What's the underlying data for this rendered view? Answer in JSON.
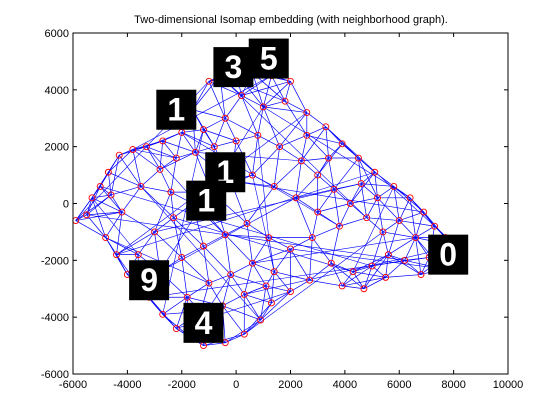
{
  "chart_data": {
    "type": "scatter",
    "title": "Two-dimensional Isomap embedding (with neighborhood graph).",
    "xlabel": "",
    "ylabel": "",
    "xlim": [
      -6000,
      10000
    ],
    "ylim": [
      -6000,
      6000
    ],
    "x_ticks": [
      "-6000",
      "-4000",
      "-2000",
      "0",
      "2000",
      "4000",
      "6000",
      "8000",
      "10000"
    ],
    "y_ticks": [
      "-6000",
      "-4000",
      "-2000",
      "0",
      "2000",
      "4000",
      "6000"
    ],
    "grid": false,
    "legend": "none",
    "point_color": "#ff0000",
    "edge_color": "#0000ff",
    "nodes": [
      [
        -5900,
        -600
      ],
      [
        -5500,
        -400
      ],
      [
        -5300,
        200
      ],
      [
        -5000,
        600
      ],
      [
        -4700,
        1100
      ],
      [
        -4300,
        1700
      ],
      [
        -3800,
        1900
      ],
      [
        -3300,
        2000
      ],
      [
        -2700,
        2200
      ],
      [
        -2000,
        2500
      ],
      [
        -1600,
        3300
      ],
      [
        -1000,
        4300
      ],
      [
        -600,
        4500
      ],
      [
        0,
        4600
      ],
      [
        600,
        4600
      ],
      [
        1300,
        4500
      ],
      [
        2000,
        4300
      ],
      [
        2600,
        3200
      ],
      [
        3300,
        2700
      ],
      [
        3900,
        2100
      ],
      [
        4500,
        1600
      ],
      [
        5100,
        1100
      ],
      [
        5800,
        600
      ],
      [
        6400,
        200
      ],
      [
        6900,
        -300
      ],
      [
        7300,
        -800
      ],
      [
        7700,
        -1200
      ],
      [
        8100,
        -1500
      ],
      [
        7600,
        -2300
      ],
      [
        6800,
        -2500
      ],
      [
        6200,
        -2000
      ],
      [
        5600,
        -1800
      ],
      [
        5000,
        -2200
      ],
      [
        4300,
        -2400
      ],
      [
        3500,
        -2100
      ],
      [
        2700,
        -2700
      ],
      [
        2000,
        -3100
      ],
      [
        1300,
        -3500
      ],
      [
        900,
        -4100
      ],
      [
        300,
        -4600
      ],
      [
        -400,
        -4900
      ],
      [
        -1200,
        -5000
      ],
      [
        -1700,
        -4700
      ],
      [
        -2200,
        -4400
      ],
      [
        -2700,
        -3900
      ],
      [
        -3200,
        -3300
      ],
      [
        -3600,
        -2900
      ],
      [
        -4000,
        -2500
      ],
      [
        -4400,
        -1800
      ],
      [
        -4800,
        -1200
      ],
      [
        -4200,
        -300
      ],
      [
        -3500,
        600
      ],
      [
        -2800,
        1200
      ],
      [
        -2200,
        1600
      ],
      [
        -1500,
        1800
      ],
      [
        -800,
        2000
      ],
      [
        0,
        2200
      ],
      [
        800,
        2400
      ],
      [
        1600,
        2000
      ],
      [
        2400,
        1500
      ],
      [
        3000,
        1000
      ],
      [
        3600,
        500
      ],
      [
        4200,
        0
      ],
      [
        4800,
        -500
      ],
      [
        5400,
        -1000
      ],
      [
        -3000,
        -1000
      ],
      [
        -2300,
        -500
      ],
      [
        -1600,
        0
      ],
      [
        -900,
        400
      ],
      [
        -200,
        800
      ],
      [
        600,
        1000
      ],
      [
        1400,
        600
      ],
      [
        2200,
        200
      ],
      [
        3000,
        -300
      ],
      [
        3800,
        -800
      ],
      [
        -2800,
        -2400
      ],
      [
        -2000,
        -1900
      ],
      [
        -1200,
        -1500
      ],
      [
        -400,
        -1100
      ],
      [
        400,
        -700
      ],
      [
        1200,
        -1200
      ],
      [
        2000,
        -1600
      ],
      [
        2800,
        -1200
      ],
      [
        -1800,
        -3300
      ],
      [
        -1000,
        -2800
      ],
      [
        -200,
        -2500
      ],
      [
        600,
        -2100
      ],
      [
        1400,
        -2400
      ],
      [
        -1300,
        -3800
      ],
      [
        -500,
        -3600
      ],
      [
        300,
        -3200
      ],
      [
        1100,
        -2900
      ],
      [
        -2400,
        400
      ],
      [
        -3600,
        -1800
      ],
      [
        -4600,
        300
      ],
      [
        1800,
        3600
      ],
      [
        1000,
        3400
      ],
      [
        200,
        3800
      ],
      [
        -400,
        3000
      ],
      [
        -1200,
        2600
      ],
      [
        2600,
        2400
      ],
      [
        3400,
        1600
      ],
      [
        4600,
        700
      ],
      [
        5200,
        200
      ],
      [
        6000,
        -600
      ],
      [
        6600,
        -1200
      ],
      [
        7100,
        -1900
      ],
      [
        5500,
        -2600
      ],
      [
        4700,
        -3000
      ],
      [
        3900,
        -2900
      ]
    ],
    "labels": [
      {
        "text": "1",
        "x": -2200,
        "y": 3300
      },
      {
        "text": "3",
        "x": -100,
        "y": 4800
      },
      {
        "text": "5",
        "x": 1200,
        "y": 5100
      },
      {
        "text": "1",
        "x": -400,
        "y": 1100
      },
      {
        "text": "1",
        "x": -1100,
        "y": 100
      },
      {
        "text": "9",
        "x": -3200,
        "y": -2700
      },
      {
        "text": "4",
        "x": -1200,
        "y": -4200
      },
      {
        "text": "0",
        "x": 7800,
        "y": -1800
      }
    ]
  }
}
